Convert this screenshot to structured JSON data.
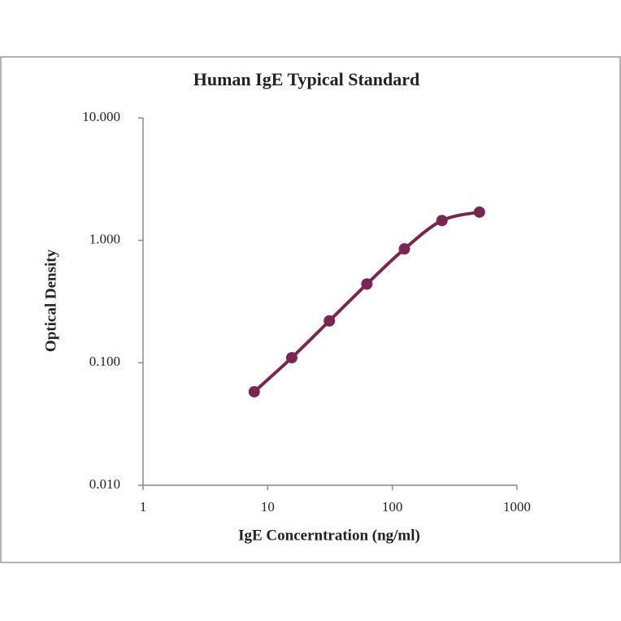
{
  "chart_data": {
    "type": "scatter",
    "title": "Human IgE Typical Standard",
    "x_label": "IgE Concerntration (ng/ml)",
    "y_label": "Optical Density",
    "x_scale": "log",
    "y_scale": "log",
    "series": [
      {
        "x": [
          7.8,
          15.6,
          31.25,
          62.5,
          125,
          250,
          500
        ],
        "values": [
          0.058,
          0.11,
          0.22,
          0.44,
          0.85,
          1.45,
          1.7
        ],
        "color": "#7b2650"
      }
    ],
    "xlim": [
      1,
      1000
    ],
    "xticks": [
      1,
      10,
      100,
      1000
    ],
    "ylim": [
      0.01,
      10
    ],
    "yticks": [
      {
        "value": 0.01,
        "label": "0.010"
      },
      {
        "value": 0.1,
        "label": "0.100"
      },
      {
        "value": 1,
        "label": "1.000"
      },
      {
        "value": 10,
        "label": "10.000"
      }
    ],
    "smooth_line": true
  }
}
